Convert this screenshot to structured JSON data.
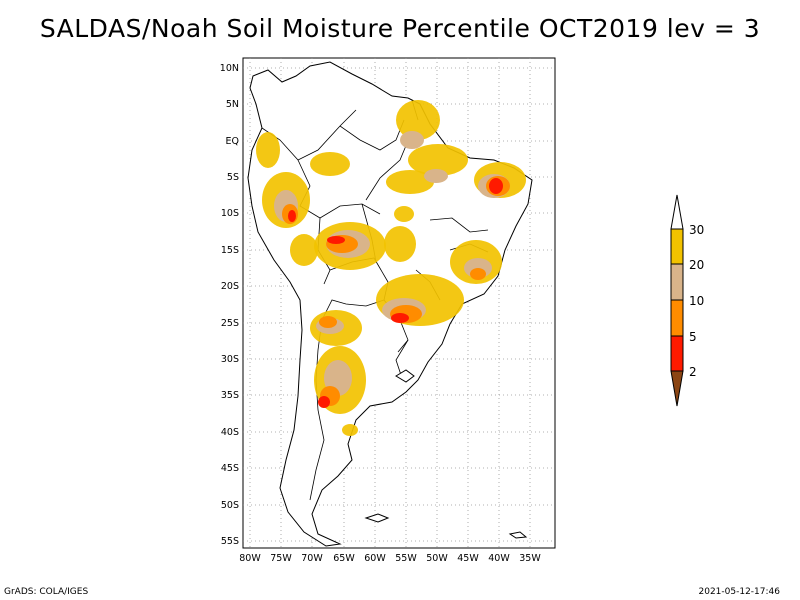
{
  "title": "SALDAS/Noah Soil Moisture Percentile OCT2019 lev = 3",
  "map": {
    "lat_labels": [
      "10N",
      "5N",
      "EQ",
      "5S",
      "10S",
      "15S",
      "20S",
      "25S",
      "30S",
      "35S",
      "40S",
      "45S",
      "50S",
      "55S"
    ],
    "lon_labels": [
      "80W",
      "75W",
      "70W",
      "65W",
      "60W",
      "55W",
      "50W",
      "45W",
      "40W",
      "35W"
    ]
  },
  "legend": {
    "labels": [
      "30",
      "20",
      "10",
      "5",
      "2"
    ],
    "colors": {
      "above_30": "#ffffff",
      "c20_30": "#f2c200",
      "c10_20": "#d9b48a",
      "c5_10": "#ff8c00",
      "c2_5": "#ff1a00",
      "below_2": "#8b4513"
    }
  },
  "footer": {
    "left": "GrADS: COLA/IGES",
    "right": "2021-05-12-17:46"
  }
}
